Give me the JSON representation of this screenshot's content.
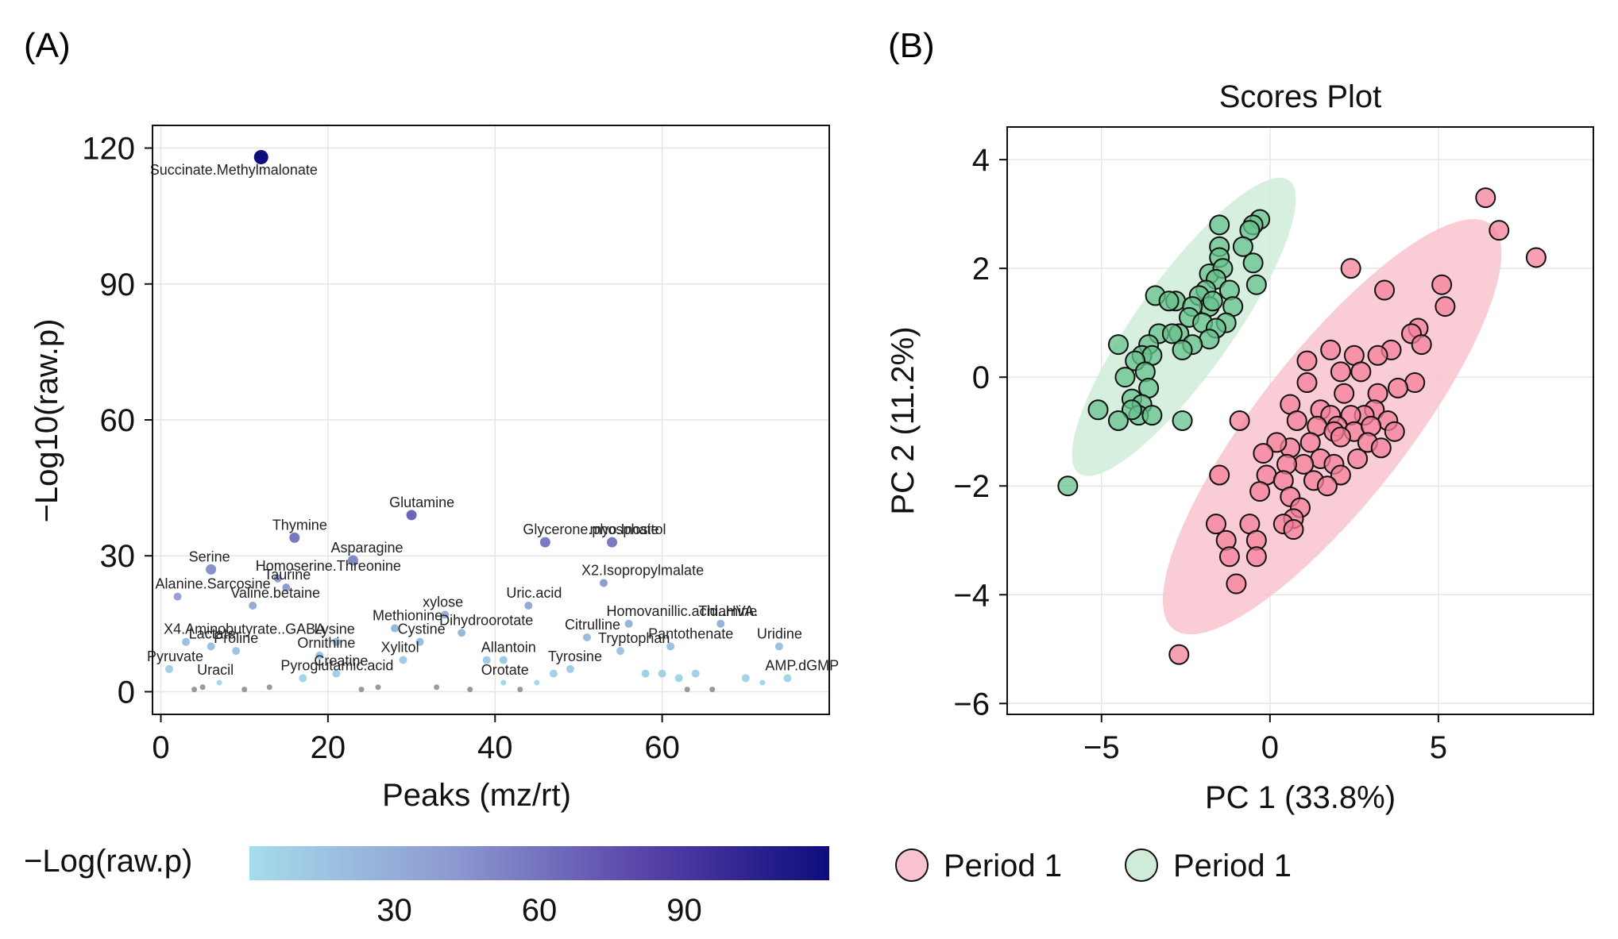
{
  "chart_data": [
    {
      "panel_label": "(A)",
      "type": "scatter",
      "xlabel": "Peaks (mz/rt)",
      "ylabel": "−Log10(raw.p)",
      "xlim": [
        -1,
        80
      ],
      "ylim": [
        -5,
        125
      ],
      "xticks": [
        "0",
        "20",
        "40",
        "60"
      ],
      "yticks": [
        "0",
        "30",
        "60",
        "90",
        "120"
      ],
      "grid": true,
      "color_scale": {
        "title": "−Log(raw.p)",
        "min": 0,
        "max": 120,
        "ticks": [
          "30",
          "60",
          "90"
        ],
        "low_color": "#a6dcec",
        "high_color": "#0d0d7c"
      },
      "points": [
        {
          "x": 12,
          "y": 118,
          "label": "Succinate.Methylmalonate"
        },
        {
          "x": 30,
          "y": 39,
          "label": "Glutamine"
        },
        {
          "x": 16,
          "y": 34,
          "label": "Thymine"
        },
        {
          "x": 46,
          "y": 33,
          "label": "Glycerone.phosphate"
        },
        {
          "x": 54,
          "y": 33,
          "label": "myo.Inositol"
        },
        {
          "x": 23,
          "y": 29,
          "label": "Asparagine"
        },
        {
          "x": 6,
          "y": 27,
          "label": "Serine"
        },
        {
          "x": 14,
          "y": 25,
          "label": "Homoserine.Threonine"
        },
        {
          "x": 53,
          "y": 24,
          "label": "X2.Isopropylmalate"
        },
        {
          "x": 15,
          "y": 23,
          "label": "Taurine"
        },
        {
          "x": 2,
          "y": 21,
          "label": "Alanine.Sarcosine"
        },
        {
          "x": 11,
          "y": 19,
          "label": "Valine.betaine"
        },
        {
          "x": 44,
          "y": 19,
          "label": "Uric.acid"
        },
        {
          "x": 34,
          "y": 17,
          "label": "xylose"
        },
        {
          "x": 56,
          "y": 15,
          "label": "Homovanillic.acid..HVA."
        },
        {
          "x": 67,
          "y": 15,
          "label": "Thiamine"
        },
        {
          "x": 28,
          "y": 14,
          "label": "Methionine"
        },
        {
          "x": 36,
          "y": 13,
          "label": "Dihydroorotate"
        },
        {
          "x": 51,
          "y": 12,
          "label": "Citrulline"
        },
        {
          "x": 3,
          "y": 11,
          "label": "X4.Aminobutyrate..GABA"
        },
        {
          "x": 21,
          "y": 11,
          "label": "Lysine"
        },
        {
          "x": 31,
          "y": 11,
          "label": "Cystine"
        },
        {
          "x": 6,
          "y": 10,
          "label": "Lactate"
        },
        {
          "x": 61,
          "y": 10,
          "label": "Pantothenate"
        },
        {
          "x": 74,
          "y": 10,
          "label": "Uridine"
        },
        {
          "x": 9,
          "y": 9,
          "label": "Proline"
        },
        {
          "x": 55,
          "y": 9,
          "label": "Tryptophan"
        },
        {
          "x": 19,
          "y": 8,
          "label": "Ornithine"
        },
        {
          "x": 29,
          "y": 7,
          "label": "Xylitol"
        },
        {
          "x": 41,
          "y": 7,
          "label": "Allantoin"
        },
        {
          "x": 1,
          "y": 5,
          "label": "Pyruvate"
        },
        {
          "x": 49,
          "y": 5,
          "label": "Tyrosine"
        },
        {
          "x": 75,
          "y": 3,
          "label": "AMP.dGMP"
        },
        {
          "x": 21,
          "y": 4,
          "label": "Creatine"
        },
        {
          "x": 41,
          "y": 2,
          "label": "Orotate"
        },
        {
          "x": 17,
          "y": 3,
          "label": "Pyroglutamic.acid"
        },
        {
          "x": 7,
          "y": 2,
          "label": "Uracil"
        },
        {
          "x": 39,
          "y": 7,
          "label": ""
        },
        {
          "x": 58,
          "y": 4,
          "label": ""
        },
        {
          "x": 60,
          "y": 4,
          "label": ""
        },
        {
          "x": 62,
          "y": 3,
          "label": ""
        },
        {
          "x": 64,
          "y": 4,
          "label": ""
        },
        {
          "x": 70,
          "y": 3,
          "label": ""
        },
        {
          "x": 72,
          "y": 2,
          "label": ""
        },
        {
          "x": 47,
          "y": 4,
          "label": ""
        },
        {
          "x": 45,
          "y": 2,
          "label": ""
        },
        {
          "x": 33,
          "y": 1,
          "label": ""
        },
        {
          "x": 26,
          "y": 1,
          "label": ""
        },
        {
          "x": 13,
          "y": 1,
          "label": ""
        },
        {
          "x": 5,
          "y": 1,
          "label": ""
        },
        {
          "x": 4,
          "y": 0.5,
          "label": ""
        },
        {
          "x": 10,
          "y": 0.5,
          "label": ""
        },
        {
          "x": 24,
          "y": 0.5,
          "label": ""
        },
        {
          "x": 37,
          "y": 0.5,
          "label": ""
        },
        {
          "x": 43,
          "y": 0.5,
          "label": ""
        },
        {
          "x": 63,
          "y": 0.5,
          "label": ""
        },
        {
          "x": 66,
          "y": 0.5,
          "label": ""
        }
      ]
    },
    {
      "panel_label": "(B)",
      "type": "scatter",
      "title": "Scores Plot",
      "xlabel": "PC 1 (33.8%)",
      "ylabel": "PC 2 (11.2%)",
      "xlim": [
        -7.8,
        9.6
      ],
      "ylim": [
        -6.2,
        4.6
      ],
      "xticks": [
        "−5",
        "0",
        "5"
      ],
      "yticks": [
        "−6",
        "−4",
        "−2",
        "0",
        "2",
        "4"
      ],
      "grid": true,
      "legend": {
        "position": "bottom",
        "items": [
          "Period 1",
          "Period 1"
        ]
      },
      "series": [
        {
          "name": "Period 1",
          "fill": "#f4809a",
          "ellipse_fill": "#f8c3cf",
          "points": [
            [
              6.4,
              3.3
            ],
            [
              6.8,
              2.7
            ],
            [
              7.9,
              2.2
            ],
            [
              2.4,
              2.0
            ],
            [
              3.4,
              1.6
            ],
            [
              5.1,
              1.7
            ],
            [
              5.2,
              1.3
            ],
            [
              4.4,
              0.9
            ],
            [
              4.2,
              0.8
            ],
            [
              4.5,
              0.6
            ],
            [
              3.6,
              0.5
            ],
            [
              3.2,
              0.4
            ],
            [
              2.5,
              0.4
            ],
            [
              1.1,
              0.3
            ],
            [
              1.8,
              0.5
            ],
            [
              2.7,
              0.1
            ],
            [
              2.1,
              0.1
            ],
            [
              1.1,
              -0.1
            ],
            [
              4.3,
              -0.1
            ],
            [
              3.8,
              -0.2
            ],
            [
              2.2,
              -0.3
            ],
            [
              3.2,
              -0.3
            ],
            [
              0.6,
              -0.5
            ],
            [
              1.5,
              -0.6
            ],
            [
              3.1,
              -0.6
            ],
            [
              2.8,
              -0.7
            ],
            [
              2.4,
              -0.7
            ],
            [
              1.8,
              -0.7
            ],
            [
              1.4,
              -0.9
            ],
            [
              -0.9,
              -0.8
            ],
            [
              0.8,
              -0.8
            ],
            [
              2.0,
              -0.9
            ],
            [
              2.5,
              -1.0
            ],
            [
              3.5,
              -0.8
            ],
            [
              3.7,
              -1.0
            ],
            [
              3.0,
              -0.9
            ],
            [
              1.9,
              -1.0
            ],
            [
              1.2,
              -1.2
            ],
            [
              0.6,
              -1.3
            ],
            [
              0.2,
              -1.2
            ],
            [
              2.1,
              -1.1
            ],
            [
              2.9,
              -1.2
            ],
            [
              3.3,
              -1.3
            ],
            [
              1.5,
              -1.5
            ],
            [
              2.6,
              -1.5
            ],
            [
              1.9,
              -1.6
            ],
            [
              1.0,
              -1.6
            ],
            [
              -0.2,
              -1.4
            ],
            [
              0.5,
              -1.6
            ],
            [
              2.1,
              -1.8
            ],
            [
              1.3,
              -1.9
            ],
            [
              -1.5,
              -1.8
            ],
            [
              -0.1,
              -1.8
            ],
            [
              0.4,
              -1.9
            ],
            [
              1.7,
              -2.0
            ],
            [
              0.6,
              -2.2
            ],
            [
              -0.3,
              -2.1
            ],
            [
              0.9,
              -2.4
            ],
            [
              0.7,
              -2.6
            ],
            [
              -0.6,
              -2.7
            ],
            [
              -1.6,
              -2.7
            ],
            [
              -1.3,
              -3.0
            ],
            [
              -0.4,
              -3.0
            ],
            [
              0.4,
              -2.7
            ],
            [
              0.7,
              -2.8
            ],
            [
              -1.2,
              -3.3
            ],
            [
              -0.4,
              -3.3
            ],
            [
              -1.0,
              -3.8
            ],
            [
              -2.7,
              -5.1
            ]
          ]
        },
        {
          "name": "Period 1",
          "fill": "#66c28c",
          "ellipse_fill": "#cfecd9",
          "points": [
            [
              -1.5,
              2.8
            ],
            [
              -0.3,
              2.9
            ],
            [
              -0.5,
              2.8
            ],
            [
              -0.6,
              2.7
            ],
            [
              -1.5,
              2.4
            ],
            [
              -0.8,
              2.4
            ],
            [
              -1.5,
              2.2
            ],
            [
              -1.8,
              1.9
            ],
            [
              -1.4,
              2.0
            ],
            [
              -1.6,
              1.8
            ],
            [
              -1.9,
              1.6
            ],
            [
              -2.1,
              1.5
            ],
            [
              -1.8,
              1.3
            ],
            [
              -1.2,
              1.6
            ],
            [
              -0.5,
              2.1
            ],
            [
              -0.4,
              1.7
            ],
            [
              -3.4,
              1.5
            ],
            [
              -2.8,
              1.4
            ],
            [
              -3.0,
              1.4
            ],
            [
              -2.3,
              1.3
            ],
            [
              -1.7,
              1.4
            ],
            [
              -1.1,
              1.3
            ],
            [
              -2.4,
              1.1
            ],
            [
              -2.0,
              1.0
            ],
            [
              -1.3,
              1.0
            ],
            [
              -1.6,
              0.9
            ],
            [
              -2.7,
              0.8
            ],
            [
              -1.8,
              0.7
            ],
            [
              -3.3,
              0.8
            ],
            [
              -2.9,
              0.8
            ],
            [
              -2.3,
              0.6
            ],
            [
              -2.6,
              0.5
            ],
            [
              -4.5,
              0.6
            ],
            [
              -3.6,
              0.6
            ],
            [
              -3.8,
              0.4
            ],
            [
              -3.5,
              0.4
            ],
            [
              -4.0,
              0.3
            ],
            [
              -3.7,
              0.1
            ],
            [
              -4.3,
              0.0
            ],
            [
              -3.6,
              -0.2
            ],
            [
              -4.1,
              -0.4
            ],
            [
              -3.8,
              -0.5
            ],
            [
              -3.9,
              -0.7
            ],
            [
              -4.1,
              -0.6
            ],
            [
              -4.5,
              -0.8
            ],
            [
              -5.1,
              -0.6
            ],
            [
              -3.5,
              -0.7
            ],
            [
              -2.6,
              -0.8
            ],
            [
              -6.0,
              -2.0
            ]
          ]
        }
      ]
    }
  ]
}
